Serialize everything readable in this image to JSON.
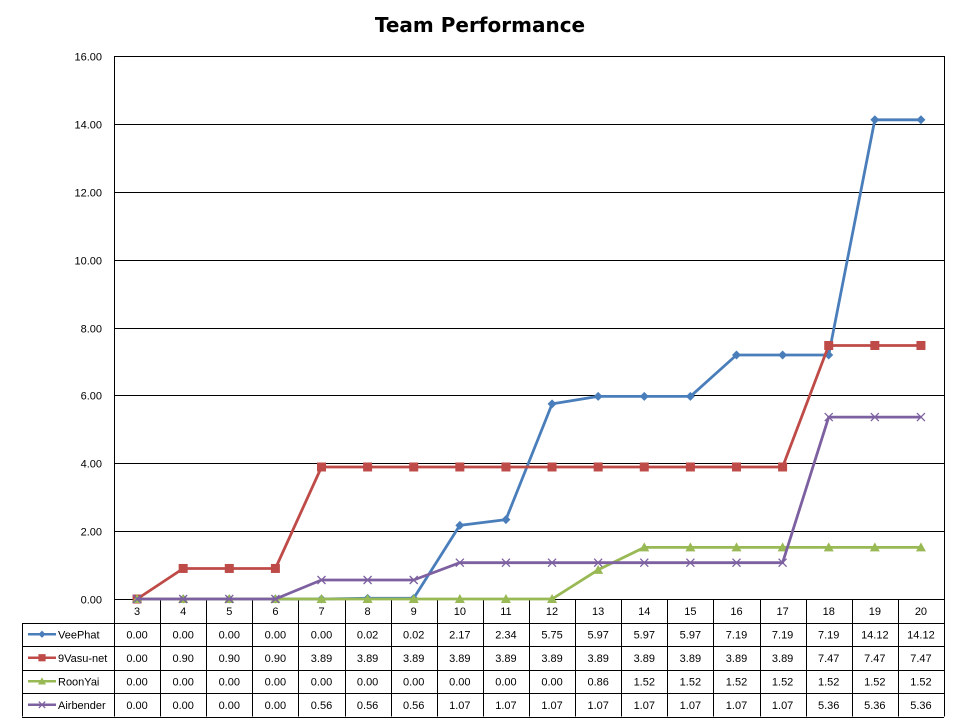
{
  "chart_data": {
    "type": "line",
    "title": "Team Performance",
    "xlabel": "",
    "ylabel": "",
    "ylim": [
      0,
      16
    ],
    "yticks": [
      "0.00",
      "2.00",
      "4.00",
      "6.00",
      "8.00",
      "10.00",
      "12.00",
      "14.00",
      "16.00"
    ],
    "categories": [
      "3",
      "4",
      "5",
      "6",
      "7",
      "8",
      "9",
      "10",
      "11",
      "12",
      "13",
      "14",
      "15",
      "16",
      "17",
      "18",
      "19",
      "20"
    ],
    "grid": "horizontal",
    "legend": "data-table",
    "series": [
      {
        "name": "VeePhat",
        "color": "#4a7ebb",
        "marker": "diamond",
        "values": [
          0.0,
          0.0,
          0.0,
          0.0,
          0.0,
          0.02,
          0.02,
          2.17,
          2.34,
          5.75,
          5.97,
          5.97,
          5.97,
          7.19,
          7.19,
          7.19,
          14.12,
          14.12
        ],
        "labels": [
          "0.00",
          "0.00",
          "0.00",
          "0.00",
          "0.00",
          "0.02",
          "0.02",
          "2.17",
          "2.34",
          "5.75",
          "5.97",
          "5.97",
          "5.97",
          "7.19",
          "7.19",
          "7.19",
          "14.12",
          "14.12"
        ]
      },
      {
        "name": "9Vasu-net",
        "color": "#be4b48",
        "marker": "square",
        "values": [
          0.0,
          0.9,
          0.9,
          0.9,
          3.89,
          3.89,
          3.89,
          3.89,
          3.89,
          3.89,
          3.89,
          3.89,
          3.89,
          3.89,
          3.89,
          7.47,
          7.47,
          7.47
        ],
        "labels": [
          "0.00",
          "0.90",
          "0.90",
          "0.90",
          "3.89",
          "3.89",
          "3.89",
          "3.89",
          "3.89",
          "3.89",
          "3.89",
          "3.89",
          "3.89",
          "3.89",
          "3.89",
          "7.47",
          "7.47",
          "7.47"
        ]
      },
      {
        "name": "RoonYai",
        "color": "#98b954",
        "marker": "triangle",
        "values": [
          0.0,
          0.0,
          0.0,
          0.0,
          0.0,
          0.0,
          0.0,
          0.0,
          0.0,
          0.0,
          0.86,
          1.52,
          1.52,
          1.52,
          1.52,
          1.52,
          1.52,
          1.52
        ],
        "labels": [
          "0.00",
          "0.00",
          "0.00",
          "0.00",
          "0.00",
          "0.00",
          "0.00",
          "0.00",
          "0.00",
          "0.00",
          "0.86",
          "1.52",
          "1.52",
          "1.52",
          "1.52",
          "1.52",
          "1.52",
          "1.52"
        ]
      },
      {
        "name": "Airbender",
        "color": "#7d60a0",
        "marker": "x",
        "values": [
          0.0,
          0.0,
          0.0,
          0.0,
          0.56,
          0.56,
          0.56,
          1.07,
          1.07,
          1.07,
          1.07,
          1.07,
          1.07,
          1.07,
          1.07,
          5.36,
          5.36,
          5.36
        ],
        "labels": [
          "0.00",
          "0.00",
          "0.00",
          "0.00",
          "0.56",
          "0.56",
          "0.56",
          "1.07",
          "1.07",
          "1.07",
          "1.07",
          "1.07",
          "1.07",
          "1.07",
          "1.07",
          "5.36",
          "5.36",
          "5.36"
        ]
      }
    ]
  }
}
